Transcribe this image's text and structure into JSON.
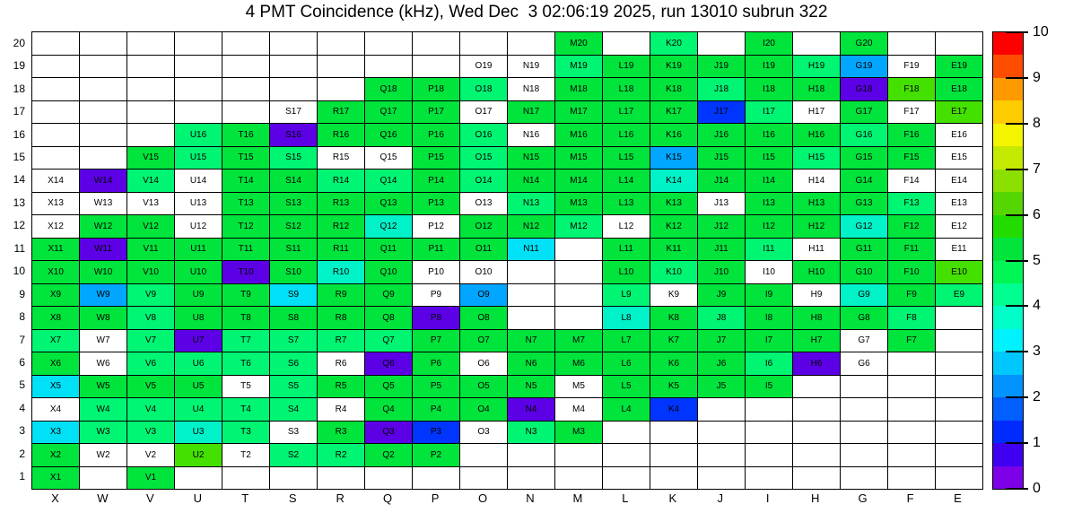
{
  "title": "4 PMT Coincidence (kHz), Wed Dec  3 02:06:19 2025, run 13010 subrun 322",
  "x_axis": {
    "labels": [
      "X",
      "W",
      "V",
      "U",
      "T",
      "S",
      "R",
      "Q",
      "P",
      "O",
      "N",
      "M",
      "L",
      "K",
      "J",
      "I",
      "H",
      "G",
      "F",
      "E"
    ]
  },
  "y_axis": {
    "labels": [
      20,
      19,
      18,
      17,
      16,
      15,
      14,
      13,
      12,
      11,
      10,
      9,
      8,
      7,
      6,
      5,
      4,
      3,
      2,
      1
    ]
  },
  "colorbar": {
    "min": 0,
    "max": 10,
    "ticks": [
      0,
      1,
      2,
      3,
      4,
      5,
      6,
      7,
      8,
      9,
      10
    ],
    "bands_bottom_to_top": [
      "#7d00e8",
      "#3f00f2",
      "#002bff",
      "#005fff",
      "#0093ff",
      "#00c7ff",
      "#00f2ff",
      "#00ffc8",
      "#00ff91",
      "#00f556",
      "#00e43c",
      "#22dc00",
      "#55d600",
      "#8ce000",
      "#c3ea00",
      "#f5f500",
      "#ffcc00",
      "#ff9900",
      "#ff4d00",
      "#ff0000"
    ]
  },
  "palette": {
    "g": {
      "hex": "#00e43c",
      "approx_value_kHz": 5.1
    },
    "s": {
      "hex": "#00f573",
      "approx_value_kHz": 4.3
    },
    "l": {
      "hex": "#44e000",
      "approx_value_kHz": 6.0
    },
    "t": {
      "hex": "#00f2c8",
      "approx_value_kHz": 3.8
    },
    "c": {
      "hex": "#00e1f8",
      "approx_value_kHz": 3.2
    },
    "sky": {
      "hex": "#00a6ff",
      "approx_value_kHz": 2.7
    },
    "b": {
      "hex": "#0035ff",
      "approx_value_kHz": 1.4
    },
    "v": {
      "hex": "#5c00e6",
      "approx_value_kHz": 0.3
    },
    "w": {
      "hex": "#ffffff",
      "approx_value_kHz": null
    }
  },
  "chart_data": {
    "type": "heatmap",
    "units": "kHz",
    "columns": [
      "X",
      "W",
      "V",
      "U",
      "T",
      "S",
      "R",
      "Q",
      "P",
      "O",
      "N",
      "M",
      "L",
      "K",
      "J",
      "I",
      "H",
      "G",
      "F",
      "E"
    ],
    "rows": [
      20,
      19,
      18,
      17,
      16,
      15,
      14,
      13,
      12,
      11,
      10,
      9,
      8,
      7,
      6,
      5,
      4,
      3,
      2,
      1
    ],
    "note": "cells[row][col] = [label, paletteCode]; null = empty white cell; code w = white cell with label",
    "cells": [
      [
        null,
        null,
        null,
        null,
        null,
        null,
        null,
        null,
        null,
        null,
        null,
        [
          "M20",
          "g"
        ],
        null,
        [
          "K20",
          "s"
        ],
        null,
        [
          "I20",
          "g"
        ],
        null,
        [
          "G20",
          "g"
        ],
        null,
        null
      ],
      [
        null,
        null,
        null,
        null,
        null,
        null,
        null,
        null,
        null,
        [
          "O19",
          "w"
        ],
        [
          "N19",
          "w"
        ],
        [
          "M19",
          "s"
        ],
        [
          "L19",
          "g"
        ],
        [
          "K19",
          "g"
        ],
        [
          "J19",
          "g"
        ],
        [
          "I19",
          "g"
        ],
        [
          "H19",
          "s"
        ],
        [
          "G19",
          "sky"
        ],
        [
          "F19",
          "w"
        ],
        [
          "E19",
          "g"
        ]
      ],
      [
        null,
        null,
        null,
        null,
        null,
        null,
        null,
        [
          "Q18",
          "g"
        ],
        [
          "P18",
          "g"
        ],
        [
          "O18",
          "s"
        ],
        [
          "N18",
          "w"
        ],
        [
          "M18",
          "g"
        ],
        [
          "L18",
          "g"
        ],
        [
          "K18",
          "g"
        ],
        [
          "J18",
          "s"
        ],
        [
          "I18",
          "g"
        ],
        [
          "H18",
          "g"
        ],
        [
          "G18",
          "v"
        ],
        [
          "F18",
          "l"
        ],
        [
          "E18",
          "g"
        ]
      ],
      [
        null,
        null,
        null,
        null,
        null,
        [
          "S17",
          "w"
        ],
        [
          "R17",
          "g"
        ],
        [
          "Q17",
          "g"
        ],
        [
          "P17",
          "g"
        ],
        [
          "O17",
          "w"
        ],
        [
          "N17",
          "g"
        ],
        [
          "M17",
          "g"
        ],
        [
          "L17",
          "g"
        ],
        [
          "K17",
          "g"
        ],
        [
          "J17",
          "b"
        ],
        [
          "I17",
          "s"
        ],
        [
          "H17",
          "w"
        ],
        [
          "G17",
          "g"
        ],
        [
          "F17",
          "w"
        ],
        [
          "E17",
          "l"
        ]
      ],
      [
        null,
        null,
        null,
        [
          "U16",
          "s"
        ],
        [
          "T16",
          "g"
        ],
        [
          "S16",
          "v"
        ],
        [
          "R16",
          "g"
        ],
        [
          "Q16",
          "g"
        ],
        [
          "P16",
          "g"
        ],
        [
          "O16",
          "s"
        ],
        [
          "N16",
          "w"
        ],
        [
          "M16",
          "g"
        ],
        [
          "L16",
          "g"
        ],
        [
          "K16",
          "g"
        ],
        [
          "J16",
          "g"
        ],
        [
          "I16",
          "g"
        ],
        [
          "H16",
          "g"
        ],
        [
          "G16",
          "s"
        ],
        [
          "F16",
          "g"
        ],
        [
          "E16",
          "w"
        ]
      ],
      [
        null,
        null,
        [
          "V15",
          "g"
        ],
        [
          "U15",
          "s"
        ],
        [
          "T15",
          "g"
        ],
        [
          "S15",
          "s"
        ],
        [
          "R15",
          "w"
        ],
        [
          "Q15",
          "w"
        ],
        [
          "P15",
          "g"
        ],
        [
          "O15",
          "s"
        ],
        [
          "N15",
          "g"
        ],
        [
          "M15",
          "g"
        ],
        [
          "L15",
          "g"
        ],
        [
          "K15",
          "sky"
        ],
        [
          "J15",
          "g"
        ],
        [
          "I15",
          "g"
        ],
        [
          "H15",
          "s"
        ],
        [
          "G15",
          "g"
        ],
        [
          "F15",
          "g"
        ],
        [
          "E15",
          "w"
        ]
      ],
      [
        [
          "X14",
          "w"
        ],
        [
          "W14",
          "v"
        ],
        [
          "V14",
          "s"
        ],
        [
          "U14",
          "w"
        ],
        [
          "T14",
          "g"
        ],
        [
          "S14",
          "g"
        ],
        [
          "R14",
          "s"
        ],
        [
          "Q14",
          "s"
        ],
        [
          "P14",
          "g"
        ],
        [
          "O14",
          "s"
        ],
        [
          "N14",
          "g"
        ],
        [
          "M14",
          "g"
        ],
        [
          "L14",
          "g"
        ],
        [
          "K14",
          "t"
        ],
        [
          "J14",
          "g"
        ],
        [
          "I14",
          "g"
        ],
        [
          "H14",
          "w"
        ],
        [
          "G14",
          "g"
        ],
        [
          "F14",
          "w"
        ],
        [
          "E14",
          "w"
        ]
      ],
      [
        [
          "X13",
          "w"
        ],
        [
          "W13",
          "w"
        ],
        [
          "V13",
          "w"
        ],
        [
          "U13",
          "w"
        ],
        [
          "T13",
          "g"
        ],
        [
          "S13",
          "g"
        ],
        [
          "R13",
          "g"
        ],
        [
          "Q13",
          "g"
        ],
        [
          "P13",
          "g"
        ],
        [
          "O13",
          "w"
        ],
        [
          "N13",
          "s"
        ],
        [
          "M13",
          "g"
        ],
        [
          "L13",
          "g"
        ],
        [
          "K13",
          "g"
        ],
        [
          "J13",
          "w"
        ],
        [
          "I13",
          "g"
        ],
        [
          "H13",
          "g"
        ],
        [
          "G13",
          "g"
        ],
        [
          "F13",
          "s"
        ],
        [
          "E13",
          "w"
        ]
      ],
      [
        [
          "X12",
          "w"
        ],
        [
          "W12",
          "g"
        ],
        [
          "V12",
          "g"
        ],
        [
          "U12",
          "w"
        ],
        [
          "T12",
          "g"
        ],
        [
          "S12",
          "g"
        ],
        [
          "R12",
          "g"
        ],
        [
          "Q12",
          "t"
        ],
        [
          "P12",
          "w"
        ],
        [
          "O12",
          "g"
        ],
        [
          "N12",
          "g"
        ],
        [
          "M12",
          "s"
        ],
        [
          "L12",
          "w"
        ],
        [
          "K12",
          "g"
        ],
        [
          "J12",
          "g"
        ],
        [
          "I12",
          "g"
        ],
        [
          "H12",
          "g"
        ],
        [
          "G12",
          "t"
        ],
        [
          "F12",
          "g"
        ],
        [
          "E12",
          "w"
        ]
      ],
      [
        [
          "X11",
          "g"
        ],
        [
          "W11",
          "v"
        ],
        [
          "V11",
          "g"
        ],
        [
          "U11",
          "g"
        ],
        [
          "T11",
          "g"
        ],
        [
          "S11",
          "g"
        ],
        [
          "R11",
          "g"
        ],
        [
          "Q11",
          "g"
        ],
        [
          "P11",
          "g"
        ],
        [
          "O11",
          "g"
        ],
        [
          "N11",
          "c"
        ],
        null,
        [
          "L11",
          "g"
        ],
        [
          "K11",
          "g"
        ],
        [
          "J11",
          "g"
        ],
        [
          "I11",
          "s"
        ],
        [
          "H11",
          "w"
        ],
        [
          "G11",
          "g"
        ],
        [
          "F11",
          "g"
        ],
        [
          "E11",
          "w"
        ]
      ],
      [
        [
          "X10",
          "g"
        ],
        [
          "W10",
          "g"
        ],
        [
          "V10",
          "g"
        ],
        [
          "U10",
          "g"
        ],
        [
          "T10",
          "v"
        ],
        [
          "S10",
          "g"
        ],
        [
          "R10",
          "t"
        ],
        [
          "Q10",
          "g"
        ],
        [
          "P10",
          "w"
        ],
        [
          "O10",
          "w"
        ],
        null,
        null,
        [
          "L10",
          "g"
        ],
        [
          "K10",
          "s"
        ],
        [
          "J10",
          "g"
        ],
        [
          "I10",
          "w"
        ],
        [
          "H10",
          "g"
        ],
        [
          "G10",
          "g"
        ],
        [
          "F10",
          "g"
        ],
        [
          "E10",
          "l"
        ]
      ],
      [
        [
          "X9",
          "g"
        ],
        [
          "W9",
          "sky"
        ],
        [
          "V9",
          "s"
        ],
        [
          "U9",
          "g"
        ],
        [
          "T9",
          "g"
        ],
        [
          "S9",
          "c"
        ],
        [
          "R9",
          "g"
        ],
        [
          "Q9",
          "g"
        ],
        [
          "P9",
          "w"
        ],
        [
          "O9",
          "sky"
        ],
        null,
        null,
        [
          "L9",
          "s"
        ],
        [
          "K9",
          "w"
        ],
        [
          "J9",
          "g"
        ],
        [
          "I9",
          "g"
        ],
        [
          "H9",
          "w"
        ],
        [
          "G9",
          "t"
        ],
        [
          "F9",
          "g"
        ],
        [
          "E9",
          "s"
        ]
      ],
      [
        [
          "X8",
          "g"
        ],
        [
          "W8",
          "g"
        ],
        [
          "V8",
          "s"
        ],
        [
          "U8",
          "g"
        ],
        [
          "T8",
          "g"
        ],
        [
          "S8",
          "g"
        ],
        [
          "R8",
          "g"
        ],
        [
          "Q8",
          "g"
        ],
        [
          "P8",
          "v"
        ],
        [
          "O8",
          "g"
        ],
        null,
        null,
        [
          "L8",
          "t"
        ],
        [
          "K8",
          "g"
        ],
        [
          "J8",
          "s"
        ],
        [
          "I8",
          "g"
        ],
        [
          "H8",
          "g"
        ],
        [
          "G8",
          "g"
        ],
        [
          "F8",
          "s"
        ],
        null
      ],
      [
        [
          "X7",
          "s"
        ],
        [
          "W7",
          "w"
        ],
        [
          "V7",
          "s"
        ],
        [
          "U7",
          "v"
        ],
        [
          "T7",
          "s"
        ],
        [
          "S7",
          "s"
        ],
        [
          "R7",
          "s"
        ],
        [
          "Q7",
          "s"
        ],
        [
          "P7",
          "g"
        ],
        [
          "O7",
          "g"
        ],
        [
          "N7",
          "g"
        ],
        [
          "M7",
          "g"
        ],
        [
          "L7",
          "g"
        ],
        [
          "K7",
          "g"
        ],
        [
          "J7",
          "g"
        ],
        [
          "I7",
          "g"
        ],
        [
          "H7",
          "g"
        ],
        [
          "G7",
          "w"
        ],
        [
          "F7",
          "g"
        ],
        null
      ],
      [
        [
          "X6",
          "g"
        ],
        [
          "W6",
          "w"
        ],
        [
          "V6",
          "s"
        ],
        [
          "U6",
          "s"
        ],
        [
          "T6",
          "s"
        ],
        [
          "S6",
          "s"
        ],
        [
          "R6",
          "w"
        ],
        [
          "Q6",
          "v"
        ],
        [
          "P6",
          "g"
        ],
        [
          "O6",
          "w"
        ],
        [
          "N6",
          "g"
        ],
        [
          "M6",
          "g"
        ],
        [
          "L6",
          "g"
        ],
        [
          "K6",
          "g"
        ],
        [
          "J6",
          "g"
        ],
        [
          "I6",
          "s"
        ],
        [
          "H6",
          "v"
        ],
        [
          "G6",
          "w"
        ],
        null,
        null
      ],
      [
        [
          "X5",
          "c"
        ],
        [
          "W5",
          "g"
        ],
        [
          "V5",
          "g"
        ],
        [
          "U5",
          "g"
        ],
        [
          "T5",
          "w"
        ],
        [
          "S5",
          "s"
        ],
        [
          "R5",
          "g"
        ],
        [
          "Q5",
          "g"
        ],
        [
          "P5",
          "g"
        ],
        [
          "O5",
          "g"
        ],
        [
          "N5",
          "g"
        ],
        [
          "M5",
          "w"
        ],
        [
          "L5",
          "g"
        ],
        [
          "K5",
          "g"
        ],
        [
          "J5",
          "g"
        ],
        [
          "I5",
          "g"
        ],
        null,
        null,
        null,
        null
      ],
      [
        [
          "X4",
          "w"
        ],
        [
          "W4",
          "s"
        ],
        [
          "V4",
          "s"
        ],
        [
          "U4",
          "s"
        ],
        [
          "T4",
          "s"
        ],
        [
          "S4",
          "s"
        ],
        [
          "R4",
          "w"
        ],
        [
          "Q4",
          "g"
        ],
        [
          "P4",
          "g"
        ],
        [
          "O4",
          "g"
        ],
        [
          "N4",
          "v"
        ],
        [
          "M4",
          "w"
        ],
        [
          "L4",
          "g"
        ],
        [
          "K4",
          "b"
        ],
        null,
        null,
        null,
        null,
        null,
        null
      ],
      [
        [
          "X3",
          "c"
        ],
        [
          "W3",
          "s"
        ],
        [
          "V3",
          "s"
        ],
        [
          "U3",
          "t"
        ],
        [
          "T3",
          "s"
        ],
        [
          "S3",
          "w"
        ],
        [
          "R3",
          "g"
        ],
        [
          "Q3",
          "v"
        ],
        [
          "P3",
          "b"
        ],
        [
          "O3",
          "w"
        ],
        [
          "N3",
          "s"
        ],
        [
          "M3",
          "g"
        ],
        null,
        null,
        null,
        null,
        null,
        null,
        null,
        null
      ],
      [
        [
          "X2",
          "g"
        ],
        [
          "W2",
          "w"
        ],
        [
          "V2",
          "w"
        ],
        [
          "U2",
          "l"
        ],
        [
          "T2",
          "w"
        ],
        [
          "S2",
          "s"
        ],
        [
          "R2",
          "s"
        ],
        [
          "Q2",
          "g"
        ],
        [
          "P2",
          "g"
        ],
        null,
        null,
        null,
        null,
        null,
        null,
        null,
        null,
        null,
        null,
        null
      ],
      [
        [
          "X1",
          "g"
        ],
        null,
        [
          "V1",
          "g"
        ],
        null,
        null,
        null,
        null,
        null,
        null,
        null,
        null,
        null,
        null,
        null,
        null,
        null,
        null,
        null,
        null,
        null
      ]
    ]
  }
}
